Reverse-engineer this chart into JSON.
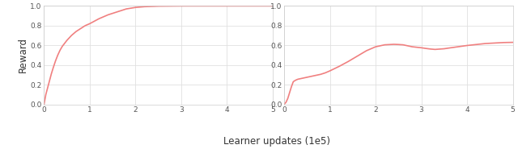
{
  "line_color": "#f08080",
  "line_width": 1.2,
  "background_color": "#ffffff",
  "grid_color": "#e0e0e0",
  "ylabel": "Reward",
  "xlabel": "Learner updates (1e5)",
  "xlim": [
    0,
    5
  ],
  "ylim": [
    0.0,
    1.0
  ],
  "yticks": [
    0.0,
    0.2,
    0.4,
    0.6,
    0.8,
    1.0
  ],
  "xticks": [
    0,
    1,
    2,
    3,
    4,
    5
  ],
  "tick_fontsize": 6.5,
  "label_fontsize": 8.5,
  "plot1": {
    "x": [
      0,
      0.04,
      0.08,
      0.12,
      0.16,
      0.2,
      0.25,
      0.3,
      0.35,
      0.4,
      0.5,
      0.6,
      0.7,
      0.8,
      0.9,
      1.0,
      1.2,
      1.4,
      1.6,
      1.8,
      2.0,
      2.2,
      2.5,
      3.0,
      3.5,
      4.0,
      4.5,
      5.0
    ],
    "y": [
      0.0,
      0.1,
      0.17,
      0.24,
      0.31,
      0.37,
      0.44,
      0.5,
      0.55,
      0.59,
      0.65,
      0.7,
      0.74,
      0.77,
      0.8,
      0.82,
      0.87,
      0.91,
      0.94,
      0.97,
      0.985,
      0.993,
      0.998,
      1.0,
      1.0,
      1.0,
      1.0,
      1.0
    ]
  },
  "plot2": {
    "x": [
      0,
      0.04,
      0.08,
      0.12,
      0.16,
      0.2,
      0.25,
      0.3,
      0.35,
      0.4,
      0.5,
      0.6,
      0.7,
      0.8,
      0.9,
      1.0,
      1.2,
      1.4,
      1.6,
      1.8,
      2.0,
      2.2,
      2.4,
      2.5,
      2.6,
      2.7,
      2.8,
      3.0,
      3.1,
      3.2,
      3.3,
      3.5,
      3.6,
      3.8,
      4.0,
      4.2,
      4.4,
      4.6,
      4.8,
      5.0
    ],
    "y": [
      0.0,
      0.02,
      0.06,
      0.12,
      0.18,
      0.23,
      0.245,
      0.255,
      0.26,
      0.265,
      0.275,
      0.285,
      0.295,
      0.305,
      0.32,
      0.34,
      0.385,
      0.435,
      0.49,
      0.545,
      0.585,
      0.605,
      0.61,
      0.608,
      0.605,
      0.595,
      0.585,
      0.575,
      0.568,
      0.562,
      0.558,
      0.565,
      0.572,
      0.585,
      0.598,
      0.608,
      0.618,
      0.623,
      0.628,
      0.63
    ]
  }
}
